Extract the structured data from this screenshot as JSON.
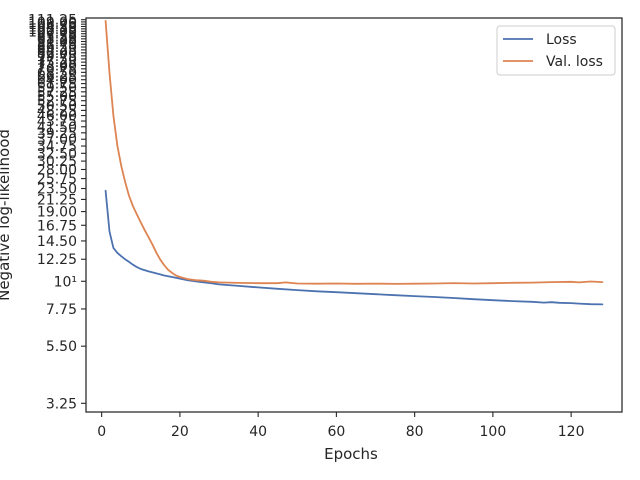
{
  "chart_data": {
    "type": "line",
    "xlabel": "Epochs",
    "ylabel": "Negative log-likelihood",
    "xlim": [
      -4,
      133
    ],
    "ylim": [
      3.0,
      113.0
    ],
    "yscale": "log",
    "grid": false,
    "legend_position": "top-right",
    "x_ticks": [
      0,
      20,
      40,
      60,
      80,
      100,
      120
    ],
    "y_ticks": [
      {
        "value": 3.25,
        "label": "3.25"
      },
      {
        "value": 5.5,
        "label": "5.50"
      },
      {
        "value": 7.75,
        "label": "7.75"
      },
      {
        "value": 10,
        "label": "10¹"
      },
      {
        "value": 12.25,
        "label": "12.25"
      },
      {
        "value": 14.5,
        "label": "14.50"
      },
      {
        "value": 16.75,
        "label": "16.75"
      },
      {
        "value": 19.0,
        "label": "19.00"
      },
      {
        "value": 21.25,
        "label": "21.25"
      },
      {
        "value": 23.5,
        "label": "23.50"
      },
      {
        "value": 25.75,
        "label": "25.75"
      },
      {
        "value": 28.0,
        "label": "28.00"
      },
      {
        "value": 30.25,
        "label": "30.25"
      },
      {
        "value": 32.5,
        "label": "32.50"
      },
      {
        "value": 34.75,
        "label": "34.75"
      },
      {
        "value": 37.0,
        "label": "37.00"
      },
      {
        "value": 39.25,
        "label": "39.25"
      },
      {
        "value": 41.5,
        "label": "41.50"
      },
      {
        "value": 43.75,
        "label": "43.75"
      },
      {
        "value": 46.0,
        "label": "46.00"
      },
      {
        "value": 48.25,
        "label": "48.25"
      },
      {
        "value": 50.5,
        "label": "50.50"
      },
      {
        "value": 52.75,
        "label": "52.75"
      },
      {
        "value": 55.0,
        "label": "55.00"
      },
      {
        "value": 57.25,
        "label": "57.25"
      },
      {
        "value": 59.5,
        "label": "59.50"
      },
      {
        "value": 61.75,
        "label": "61.75"
      },
      {
        "value": 64.0,
        "label": "64.00"
      },
      {
        "value": 66.25,
        "label": "66.25"
      },
      {
        "value": 68.5,
        "label": "68.50"
      },
      {
        "value": 70.75,
        "label": "70.75"
      },
      {
        "value": 73.0,
        "label": "73.00"
      },
      {
        "value": 75.25,
        "label": "75.25"
      },
      {
        "value": 77.5,
        "label": "77.50"
      },
      {
        "value": 79.75,
        "label": "79.75"
      },
      {
        "value": 82.0,
        "label": "82.00"
      },
      {
        "value": 84.25,
        "label": "84.25"
      },
      {
        "value": 86.5,
        "label": "86.50"
      },
      {
        "value": 88.75,
        "label": "88.75"
      },
      {
        "value": 91.0,
        "label": "91.00"
      },
      {
        "value": 93.25,
        "label": "93.25"
      },
      {
        "value": 95.5,
        "label": "95.50"
      },
      {
        "value": 97.75,
        "label": "97.75"
      },
      {
        "value": 100.0,
        "label": "100.00"
      },
      {
        "value": 102.25,
        "label": "102.25"
      },
      {
        "value": 104.5,
        "label": "104.50"
      },
      {
        "value": 106.75,
        "label": "106.75"
      },
      {
        "value": 109.0,
        "label": "109.00"
      },
      {
        "value": 111.25,
        "label": "111.25"
      }
    ],
    "series": [
      {
        "name": "Loss",
        "color": "#4c72b0",
        "x": [
          1,
          2,
          3,
          4,
          5,
          6,
          7,
          8,
          9,
          10,
          12,
          14,
          16,
          18,
          20,
          22,
          25,
          28,
          30,
          35,
          40,
          45,
          50,
          55,
          60,
          65,
          70,
          75,
          80,
          85,
          90,
          95,
          100,
          105,
          110,
          113,
          115,
          117,
          120,
          122,
          125,
          128
        ],
        "y": [
          23.0,
          15.8,
          13.6,
          13.0,
          12.6,
          12.25,
          11.95,
          11.65,
          11.4,
          11.2,
          10.95,
          10.75,
          10.55,
          10.4,
          10.25,
          10.1,
          9.95,
          9.82,
          9.72,
          9.58,
          9.45,
          9.33,
          9.22,
          9.12,
          9.04,
          8.96,
          8.88,
          8.8,
          8.72,
          8.65,
          8.57,
          8.48,
          8.4,
          8.33,
          8.28,
          8.22,
          8.25,
          8.2,
          8.18,
          8.14,
          8.1,
          8.08
        ]
      },
      {
        "name": "Val. loss",
        "color": "#dd8452",
        "x": [
          1,
          2,
          3,
          4,
          5,
          6,
          7,
          8,
          9,
          10,
          11,
          12,
          13,
          14,
          15,
          16,
          17,
          18,
          19,
          20,
          22,
          24,
          26,
          28,
          30,
          35,
          40,
          45,
          47,
          50,
          55,
          60,
          65,
          70,
          75,
          80,
          85,
          90,
          95,
          100,
          105,
          110,
          115,
          120,
          122,
          125,
          128
        ],
        "y": [
          110.0,
          68.0,
          46.0,
          35.0,
          29.0,
          25.0,
          22.0,
          20.0,
          18.5,
          17.2,
          16.0,
          15.0,
          14.0,
          13.0,
          12.2,
          11.6,
          11.1,
          10.8,
          10.55,
          10.4,
          10.2,
          10.1,
          10.05,
          9.95,
          9.9,
          9.85,
          9.82,
          9.82,
          9.9,
          9.8,
          9.78,
          9.8,
          9.77,
          9.79,
          9.76,
          9.78,
          9.8,
          9.83,
          9.8,
          9.82,
          9.86,
          9.88,
          9.92,
          9.95,
          9.9,
          9.98,
          9.92
        ]
      }
    ]
  }
}
